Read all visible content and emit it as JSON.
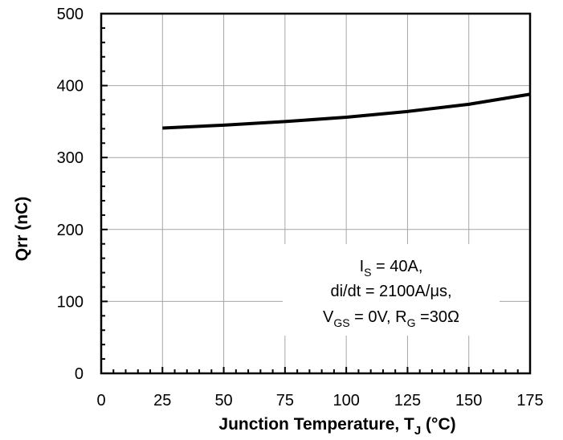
{
  "chart_data": {
    "type": "line",
    "xlabel": "Junction Temperature, T",
    "xlabel_sub": "J",
    "xlabel_suffix": " (°C)",
    "ylabel": "Qrr (nC)",
    "xlim": [
      0,
      175
    ],
    "ylim": [
      0,
      500
    ],
    "x_ticks": [
      0,
      25,
      50,
      75,
      100,
      125,
      150,
      175
    ],
    "y_ticks": [
      0,
      100,
      200,
      300,
      400,
      500
    ],
    "grid": true,
    "series": [
      {
        "x": [
          25,
          50,
          75,
          100,
          125,
          150,
          175
        ],
        "y": [
          341,
          345,
          350,
          356,
          364,
          374,
          388
        ]
      }
    ],
    "annotation": {
      "line1": {
        "main": "I",
        "sub": "S",
        "rest": " = 40A,"
      },
      "line2": "di/dt = 2100A/μs,",
      "line3": {
        "p1": "V",
        "p1sub": "GS",
        "p1rest": " = 0V, R",
        "p2sub": "G",
        "p2rest": " =30Ω"
      }
    },
    "colors": {
      "line": "#000000",
      "grid": "#a6a6a6",
      "axis": "#000000",
      "background": "#ffffff"
    }
  }
}
